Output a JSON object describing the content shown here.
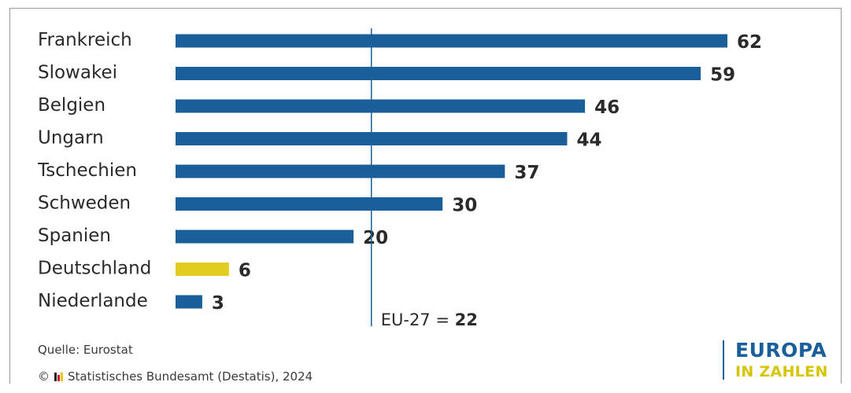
{
  "chart_data": {
    "type": "bar",
    "orientation": "horizontal",
    "categories": [
      "Frankreich",
      "Slowakei",
      "Belgien",
      "Ungarn",
      "Tschechien",
      "Schweden",
      "Spanien",
      "Deutschland",
      "Niederlande"
    ],
    "values": [
      62,
      59,
      46,
      44,
      37,
      30,
      20,
      6,
      3
    ],
    "highlight": "Deutschland",
    "colors": {
      "default": "#1a5e9a",
      "highlight": "#e1cc1f",
      "reference": "#1a5e9a"
    },
    "reference_line": {
      "value": 22,
      "prefix": "EU-27 = ",
      "value_label": "22"
    },
    "xlim": [
      0,
      62
    ]
  },
  "footer": {
    "source": "Quelle: Eurostat",
    "copyright_symbol": "©",
    "copyright": "Statistisches Bundesamt (Destatis), 2024"
  },
  "brand": {
    "line1": "EUROPA",
    "line2": "IN ZAHLEN"
  }
}
